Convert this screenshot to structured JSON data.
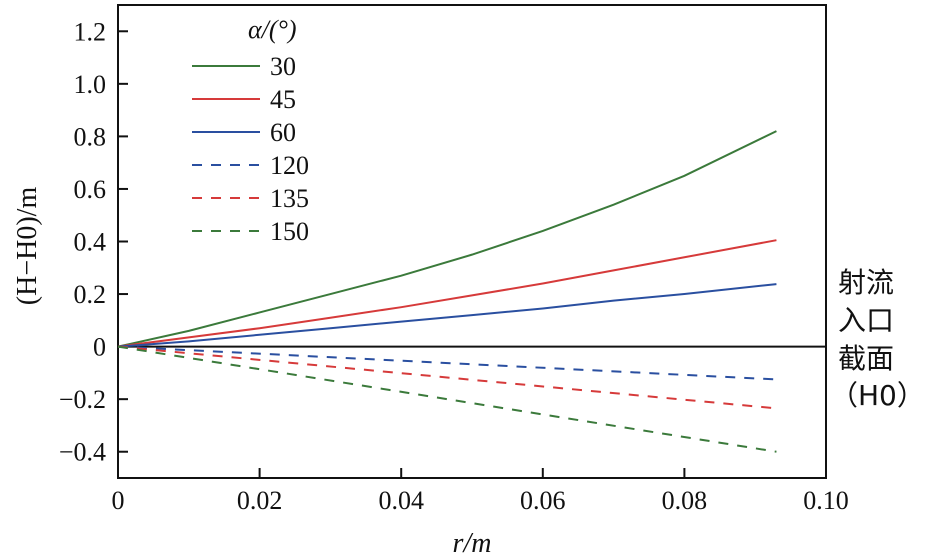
{
  "chart_data": {
    "type": "line",
    "title": "",
    "xlabel": "r/m",
    "ylabel": "(H−H0)/m",
    "xlim": [
      0,
      0.1
    ],
    "ylim": [
      -0.5,
      1.3
    ],
    "x_ticks": [
      "0",
      "0.02",
      "0.04",
      "0.06",
      "0.08",
      "0.10"
    ],
    "y_ticks": [
      "−0.4",
      "−0.2",
      "0",
      "0.2",
      "0.4",
      "0.6",
      "0.8",
      "1.0",
      "1.2"
    ],
    "legend_title": "α/(°)",
    "reference_line_label": "射流入口截面（H0）",
    "series": [
      {
        "name": "30",
        "color": "#3b7a3b",
        "dash": "solid",
        "x": [
          0,
          0.01,
          0.02,
          0.03,
          0.04,
          0.05,
          0.06,
          0.07,
          0.08,
          0.093
        ],
        "y": [
          0,
          0.06,
          0.13,
          0.2,
          0.27,
          0.35,
          0.44,
          0.54,
          0.65,
          0.82
        ]
      },
      {
        "name": "45",
        "color": "#d63a3a",
        "dash": "solid",
        "x": [
          0,
          0.01,
          0.02,
          0.03,
          0.04,
          0.05,
          0.06,
          0.07,
          0.08,
          0.093
        ],
        "y": [
          0,
          0.035,
          0.07,
          0.11,
          0.15,
          0.195,
          0.24,
          0.29,
          0.34,
          0.405
        ]
      },
      {
        "name": "60",
        "color": "#2a4fa0",
        "dash": "solid",
        "x": [
          0,
          0.01,
          0.02,
          0.03,
          0.04,
          0.05,
          0.06,
          0.07,
          0.08,
          0.093
        ],
        "y": [
          0,
          0.02,
          0.045,
          0.07,
          0.095,
          0.12,
          0.145,
          0.175,
          0.2,
          0.238
        ]
      },
      {
        "name": "120",
        "color": "#2a4fa0",
        "dash": "dashed",
        "x": [
          0,
          0.093
        ],
        "y": [
          0,
          -0.125
        ]
      },
      {
        "name": "135",
        "color": "#d63a3a",
        "dash": "dashed",
        "x": [
          0,
          0.093
        ],
        "y": [
          0,
          -0.235
        ]
      },
      {
        "name": "150",
        "color": "#3b7a3b",
        "dash": "dashed",
        "x": [
          0,
          0.093
        ],
        "y": [
          0,
          -0.4
        ]
      }
    ]
  },
  "text": {
    "x_axis_label": "r/m",
    "y_axis_label": "(H−H0)/m",
    "legend_title": "α/(°)",
    "side_note_line1": "射流",
    "side_note_line2": "入口",
    "side_note_line3": "截面",
    "side_note_line4": "（H0）"
  }
}
